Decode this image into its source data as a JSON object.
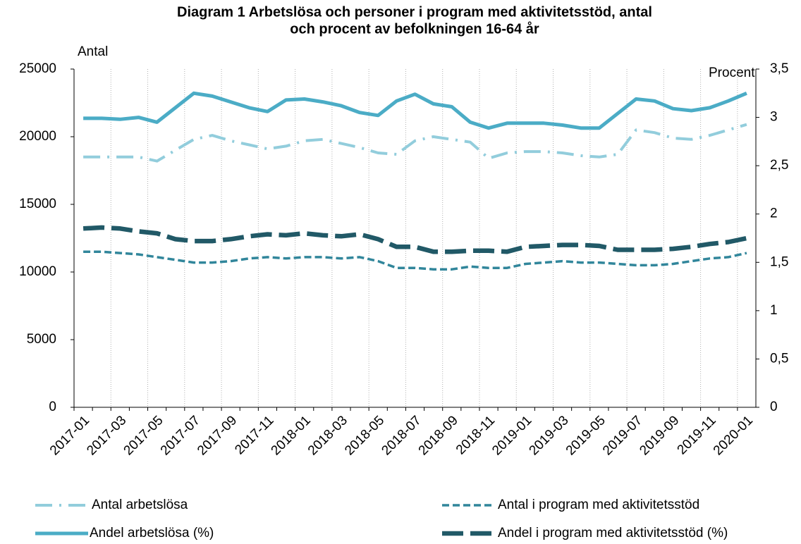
{
  "chart_data": {
    "type": "line",
    "title": [
      "Diagram 1 Arbetslösa och personer i program med aktivitetsstöd, antal",
      "och procent av befolkningen 16-64 år"
    ],
    "ylabel": "Antal",
    "y2label": "Procent",
    "categories": [
      "2017-01",
      null,
      "2017-03",
      null,
      "2017-05",
      null,
      "2017-07",
      null,
      "2017-09",
      null,
      "2017-11",
      null,
      "2018-01",
      null,
      "2018-03",
      null,
      "2018-05",
      null,
      "2018-07",
      null,
      "2018-09",
      null,
      "2018-11",
      null,
      "2019-01",
      null,
      "2019-03",
      null,
      "2019-05",
      null,
      "2019-07",
      null,
      "2019-09",
      null,
      "2019-11",
      null,
      "2020-01"
    ],
    "ylim": [
      0,
      25000
    ],
    "yticks": [
      0,
      5000,
      10000,
      15000,
      20000,
      25000
    ],
    "y2lim": [
      0,
      3.5
    ],
    "y2ticks": [
      0,
      {
        "value": 0.5,
        "label": "0,5"
      },
      1,
      {
        "value": 1.5,
        "label": "1,5"
      },
      2,
      {
        "value": 2.5,
        "label": "2,5"
      },
      3,
      {
        "value": 3.5,
        "label": "3,5"
      }
    ],
    "grid": true,
    "legend": "bottom",
    "series": [
      {
        "name": "Antal arbetslösa",
        "color": "#92cddc",
        "style": "dashdot",
        "values": [
          18500,
          18500,
          18500,
          18500,
          18200,
          19000,
          19800,
          20100,
          19700,
          19400,
          19100,
          19300,
          19700,
          19800,
          19500,
          19200,
          18800,
          18700,
          19700,
          20000,
          19800,
          19600,
          18400,
          18800,
          18900,
          18900,
          18800,
          18600,
          18500,
          18700,
          20500,
          20300,
          19900,
          19800,
          20100,
          20500,
          20900
        ]
      },
      {
        "name": "Antal i program med aktivitetsstöd",
        "color": "#31869b",
        "style": "dashed",
        "values": [
          11500,
          11500,
          11400,
          11300,
          11100,
          10900,
          10700,
          10700,
          10800,
          11000,
          11100,
          11000,
          11100,
          11100,
          11000,
          11100,
          10800,
          10300,
          10300,
          10200,
          10200,
          10400,
          10300,
          10300,
          10600,
          10700,
          10800,
          10700,
          10700,
          10600,
          10500,
          10500,
          10600,
          10800,
          11000,
          11100,
          11400
        ]
      },
      {
        "name": "Andel arbetslösa (%)",
        "color": "#4bacc6",
        "style": "solid",
        "axis": "y2",
        "values": [
          2.99,
          2.99,
          2.98,
          3.0,
          2.95,
          3.1,
          3.25,
          3.22,
          3.16,
          3.1,
          3.06,
          3.18,
          3.19,
          3.16,
          3.12,
          3.05,
          3.02,
          3.17,
          3.24,
          3.14,
          3.11,
          2.95,
          2.89,
          2.94,
          2.94,
          2.94,
          2.92,
          2.89,
          2.89,
          3.04,
          3.19,
          3.17,
          3.09,
          3.07,
          3.1,
          3.17,
          3.25
        ]
      },
      {
        "name": "Andel i program med aktivitetsstöd (%)",
        "color": "#215967",
        "style": "longdash",
        "axis": "y2",
        "values": [
          1.85,
          1.86,
          1.85,
          1.82,
          1.8,
          1.74,
          1.72,
          1.72,
          1.74,
          1.77,
          1.79,
          1.78,
          1.8,
          1.78,
          1.77,
          1.79,
          1.74,
          1.66,
          1.66,
          1.61,
          1.61,
          1.62,
          1.62,
          1.61,
          1.66,
          1.67,
          1.68,
          1.68,
          1.67,
          1.63,
          1.63,
          1.63,
          1.64,
          1.66,
          1.69,
          1.71,
          1.75
        ]
      }
    ]
  }
}
